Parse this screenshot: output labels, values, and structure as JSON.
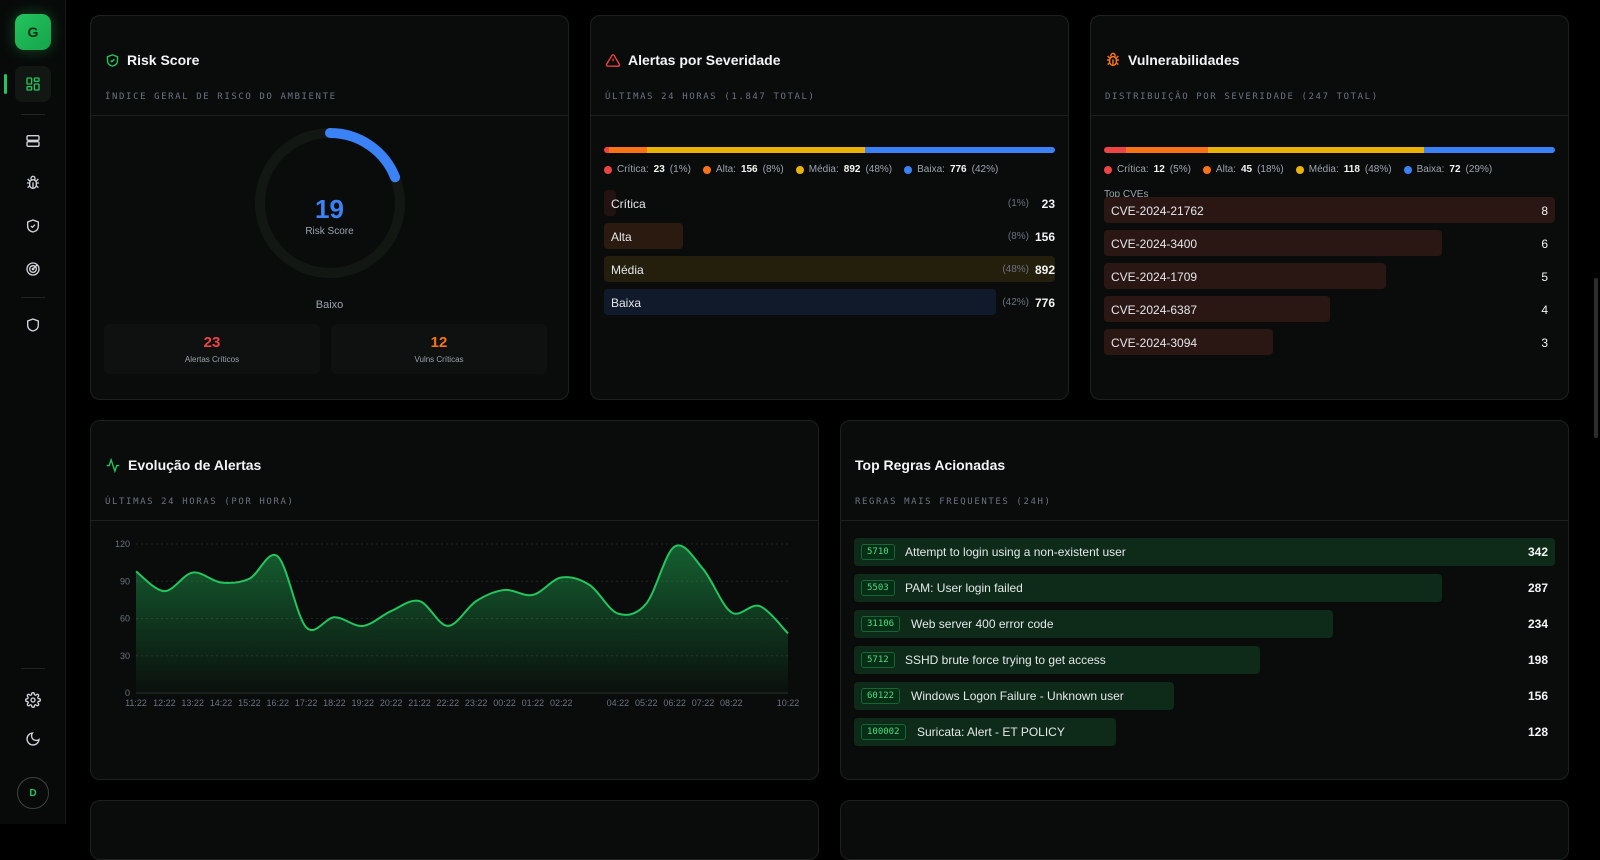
{
  "sidebar": {
    "logo_letter": "G",
    "items": [
      {
        "icon": "dashboard-icon"
      },
      {
        "icon": "server-icon"
      },
      {
        "icon": "bug-icon"
      },
      {
        "icon": "shield-check-icon"
      },
      {
        "icon": "radar-icon"
      },
      {
        "icon": "shield-icon"
      }
    ],
    "bottom": [
      {
        "icon": "gear-icon"
      },
      {
        "icon": "moon-icon"
      }
    ],
    "avatar_letter": "D"
  },
  "risk": {
    "title": "Risk Score",
    "subtitle": "Índice geral de risco do ambiente",
    "score": "19",
    "score_label": "Risk Score",
    "level": "Baixo",
    "score_fraction": 0.19,
    "critical_alerts": "23",
    "critical_alerts_label": "Alertas Críticos",
    "critical_vulns": "12",
    "critical_vulns_label": "Vulns Críticas"
  },
  "alerts": {
    "title": "Alertas por Severidade",
    "subtitle": "Últimas 24 horas (1.847 total)",
    "legend": [
      {
        "label": "Crítica:",
        "value": "23",
        "pct": "(1%)",
        "color": "#ef4444"
      },
      {
        "label": "Alta:",
        "value": "156",
        "pct": "(8%)",
        "color": "#f97316"
      },
      {
        "label": "Média:",
        "value": "892",
        "pct": "(48%)",
        "color": "#eab308"
      },
      {
        "label": "Baixa:",
        "value": "776",
        "pct": "(42%)",
        "color": "#3b82f6"
      }
    ],
    "rows": [
      {
        "name": "Crítica",
        "pct": "(1%)",
        "value": "23",
        "fraction": 0.026
      },
      {
        "name": "Alta",
        "pct": "(8%)",
        "value": "156",
        "fraction": 0.175
      },
      {
        "name": "Média",
        "pct": "(48%)",
        "value": "892",
        "fraction": 1.0
      },
      {
        "name": "Baixa",
        "pct": "(42%)",
        "value": "776",
        "fraction": 0.87
      }
    ]
  },
  "vulns": {
    "title": "Vulnerabilidades",
    "subtitle": "Distribuição por severidade (247 total)",
    "legend": [
      {
        "label": "Crítica:",
        "value": "12",
        "pct": "(5%)",
        "color": "#ef4444"
      },
      {
        "label": "Alta:",
        "value": "45",
        "pct": "(18%)",
        "color": "#f97316"
      },
      {
        "label": "Média:",
        "value": "118",
        "pct": "(48%)",
        "color": "#eab308"
      },
      {
        "label": "Baixa:",
        "value": "72",
        "pct": "(29%)",
        "color": "#3b82f6"
      }
    ],
    "top_label": "Top CVEs",
    "cves": [
      {
        "id": "CVE-2024-21762",
        "value": "8",
        "fraction": 1.0
      },
      {
        "id": "CVE-2024-3400",
        "value": "6",
        "fraction": 0.75
      },
      {
        "id": "CVE-2024-1709",
        "value": "5",
        "fraction": 0.625
      },
      {
        "id": "CVE-2024-6387",
        "value": "4",
        "fraction": 0.5
      },
      {
        "id": "CVE-2024-3094",
        "value": "3",
        "fraction": 0.375
      }
    ]
  },
  "evolution": {
    "title": "Evolução de Alertas",
    "subtitle": "Últimas 24 horas (por hora)"
  },
  "chart_data": {
    "type": "area",
    "title": "Evolução de Alertas",
    "y_ticks": [
      "0",
      "30",
      "60",
      "90",
      "120"
    ],
    "ylim": [
      0,
      120
    ],
    "x_labels": [
      "11:22",
      "12:22",
      "13:22",
      "14:22",
      "15:22",
      "16:22",
      "17:22",
      "18:22",
      "19:22",
      "20:22",
      "21:22",
      "22:22",
      "23:22",
      "00:22",
      "01:22",
      "02:22",
      "04:22",
      "05:22",
      "06:22",
      "07:22",
      "08:22",
      "10:22"
    ],
    "x": [
      "11:22",
      "12:22",
      "13:22",
      "14:22",
      "15:22",
      "16:22",
      "17:22",
      "18:22",
      "19:22",
      "20:22",
      "21:22",
      "22:22",
      "23:22",
      "00:22",
      "01:22",
      "02:22",
      "03:22",
      "04:22",
      "05:22",
      "06:22",
      "07:22",
      "08:22",
      "09:22",
      "10:22"
    ],
    "values": [
      98,
      82,
      97,
      89,
      92,
      110,
      53,
      61,
      54,
      66,
      74,
      54,
      74,
      83,
      79,
      93,
      87,
      64,
      72,
      118,
      100,
      65,
      70,
      48
    ],
    "color": "#22c55e",
    "grid": true
  },
  "rules": {
    "title": "Top Regras Acionadas",
    "subtitle": "Regras mais frequentes (24h)",
    "items": [
      {
        "id": "5710",
        "name": "Attempt to login using a non-existent user",
        "value": "342",
        "fraction": 1.0
      },
      {
        "id": "5503",
        "name": "PAM: User login failed",
        "value": "287",
        "fraction": 0.839
      },
      {
        "id": "31106",
        "name": "Web server 400 error code",
        "value": "234",
        "fraction": 0.684
      },
      {
        "id": "5712",
        "name": "SSHD brute force trying to get access",
        "value": "198",
        "fraction": 0.579
      },
      {
        "id": "60122",
        "name": "Windows Logon Failure - Unknown user",
        "value": "156",
        "fraction": 0.456
      },
      {
        "id": "100002",
        "name": "Suricata: Alert - ET POLICY",
        "value": "128",
        "fraction": 0.374
      }
    ]
  }
}
